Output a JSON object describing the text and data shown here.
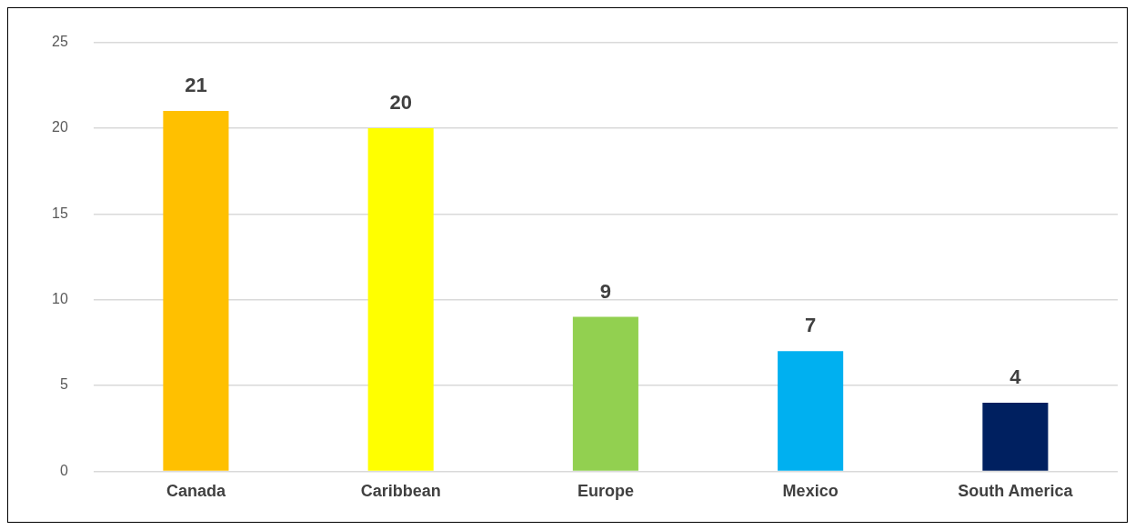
{
  "chart_data": {
    "type": "bar",
    "categories": [
      "Canada",
      "Caribbean",
      "Europe",
      "Mexico",
      "South America"
    ],
    "values": [
      21,
      20,
      9,
      7,
      4
    ],
    "colors": [
      "#ffc000",
      "#ffff00",
      "#92d050",
      "#00b0f0",
      "#002060"
    ],
    "ylim": [
      0,
      25
    ],
    "yticks": [
      0,
      5,
      10,
      15,
      20,
      25
    ],
    "grid": "y",
    "data_labels": true
  }
}
